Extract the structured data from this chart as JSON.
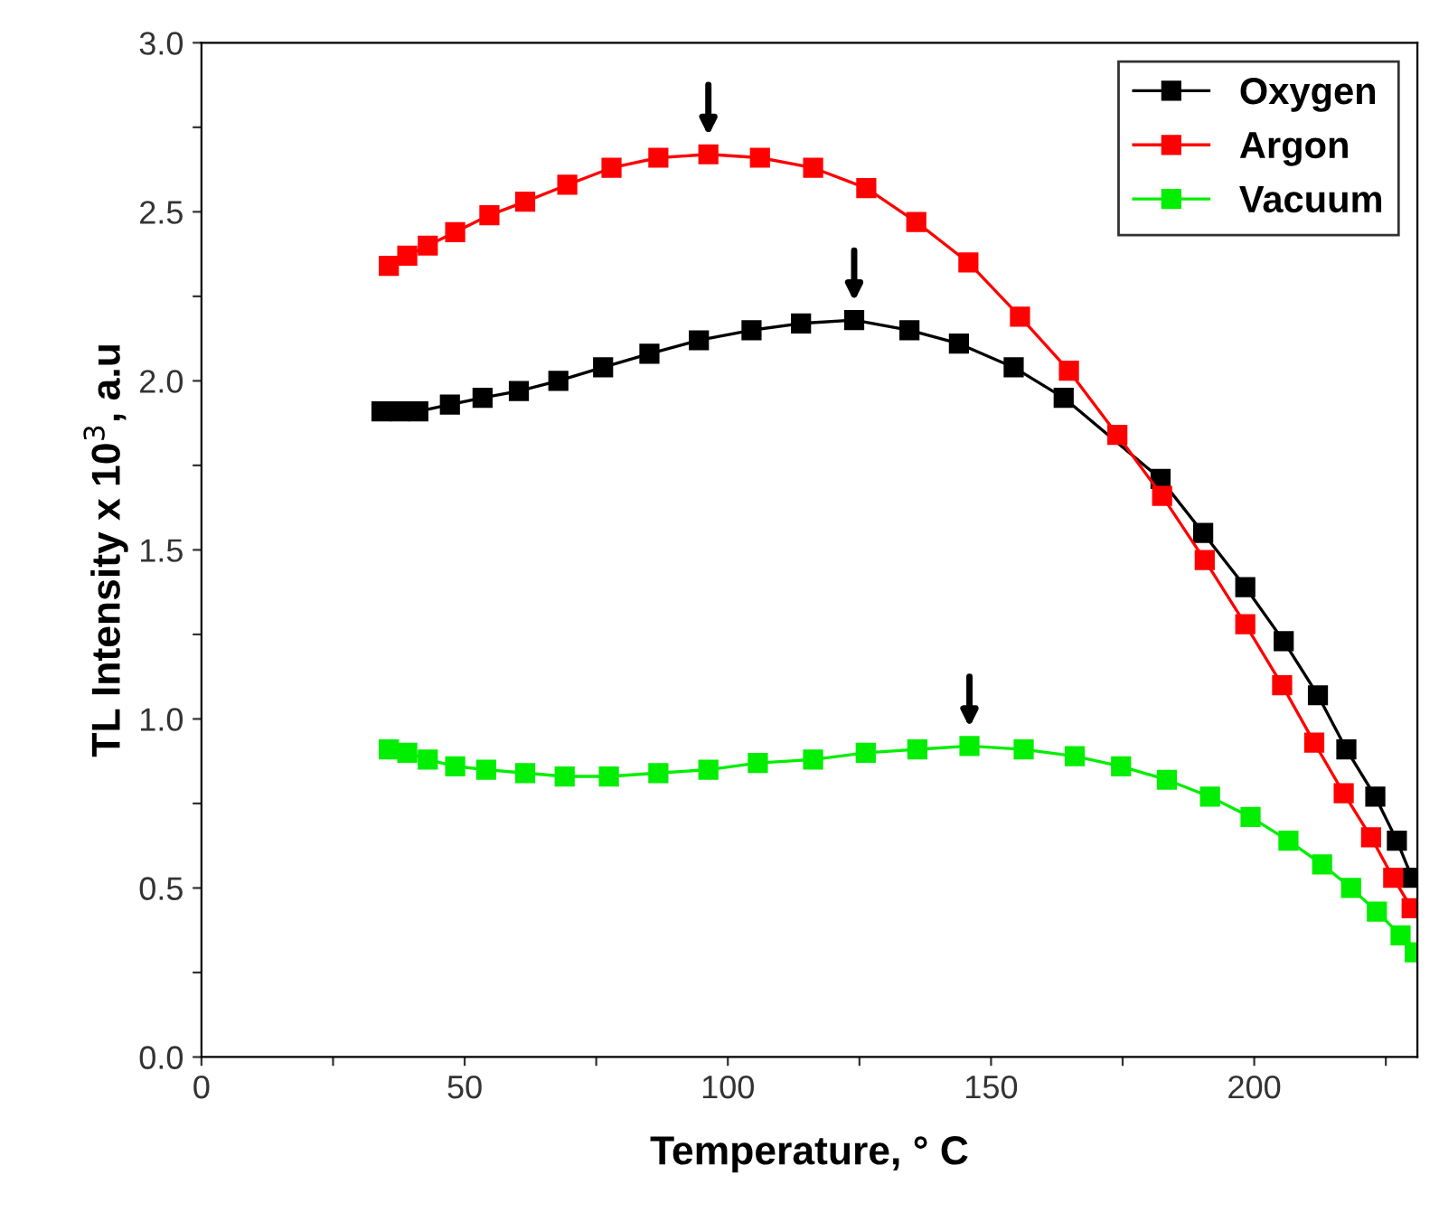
{
  "chart_data": {
    "type": "line",
    "xlabel": "Temperature, ° C",
    "ylabel": "TL Intensity x 10$^{3}$, a.u",
    "xlim": [
      0,
      231
    ],
    "ylim": [
      0,
      3.0
    ],
    "xticks": [
      0,
      {
        "value": 25,
        "label": null
      },
      50,
      {
        "value": 75,
        "label": null
      },
      100,
      {
        "value": 125,
        "label": null
      },
      150,
      {
        "value": 175,
        "label": null
      },
      200,
      {
        "value": 225,
        "label": null
      }
    ],
    "yticks": [
      {
        "value": 0,
        "label": "0.0"
      },
      {
        "value": 0.25,
        "label": null
      },
      0.5,
      {
        "value": 0.75,
        "label": null
      },
      {
        "value": 1,
        "label": "1.0"
      },
      {
        "value": 1.25,
        "label": null
      },
      1.5,
      {
        "value": 1.75,
        "label": null
      },
      {
        "value": 2,
        "label": "2.0"
      },
      {
        "value": 2.25,
        "label": null
      },
      2.5,
      {
        "value": 2.75,
        "label": null
      },
      {
        "value": 3,
        "label": "3.0"
      }
    ],
    "marker": "square",
    "line_style": "solid",
    "grid": false,
    "legend": "top right",
    "series": [
      {
        "name": "Oxygen",
        "color": "#000000",
        "x": [
          34.2,
          37.7,
          41.2,
          47.2,
          53.4,
          60.3,
          67.8,
          76.3,
          85.1,
          94.5,
          104.5,
          113.9,
          124.0,
          134.5,
          143.9,
          154.3,
          163.8,
          173.8,
          182.2,
          190.3,
          198.3,
          205.6,
          212.1,
          217.5,
          223.0,
          227.1,
          230.0
        ],
        "values": [
          1.91,
          1.91,
          1.91,
          1.93,
          1.95,
          1.97,
          2.0,
          2.04,
          2.08,
          2.12,
          2.15,
          2.17,
          2.18,
          2.15,
          2.11,
          2.04,
          1.95,
          null,
          1.71,
          1.55,
          1.39,
          1.23,
          1.07,
          0.91,
          0.77,
          0.64,
          0.53
        ]
      },
      {
        "name": "Argon",
        "color": "#ff0000",
        "x": [
          35.6,
          39.1,
          43.0,
          48.2,
          54.7,
          61.5,
          69.5,
          77.9,
          86.8,
          96.3,
          106.1,
          116.2,
          126.3,
          135.8,
          145.7,
          155.5,
          164.8,
          174.0,
          182.5,
          190.6,
          198.3,
          205.3,
          211.4,
          217.0,
          222.2,
          226.4,
          229.9
        ],
        "values": [
          2.34,
          2.37,
          2.4,
          2.44,
          2.49,
          2.53,
          2.58,
          2.63,
          2.66,
          2.67,
          2.66,
          2.63,
          2.57,
          2.47,
          2.35,
          2.19,
          2.03,
          1.84,
          1.66,
          1.47,
          1.28,
          1.1,
          0.93,
          0.78,
          0.65,
          0.53,
          0.44
        ]
      },
      {
        "name": "Vacuum",
        "color": "#00ee00",
        "x": [
          35.6,
          39.1,
          43.0,
          48.2,
          54.1,
          61.5,
          69.0,
          77.4,
          86.8,
          96.3,
          105.7,
          116.2,
          126.2,
          136.0,
          145.9,
          156.2,
          165.9,
          174.7,
          183.4,
          191.6,
          199.3,
          206.5,
          212.9,
          218.4,
          223.3,
          227.8,
          230.5
        ],
        "values": [
          0.91,
          0.9,
          0.88,
          0.86,
          0.85,
          0.84,
          0.83,
          0.83,
          0.84,
          0.85,
          0.87,
          0.88,
          0.9,
          0.91,
          0.92,
          0.91,
          0.89,
          0.86,
          0.82,
          0.77,
          0.71,
          0.64,
          0.57,
          0.5,
          0.43,
          0.36,
          0.31
        ]
      }
    ]
  }
}
